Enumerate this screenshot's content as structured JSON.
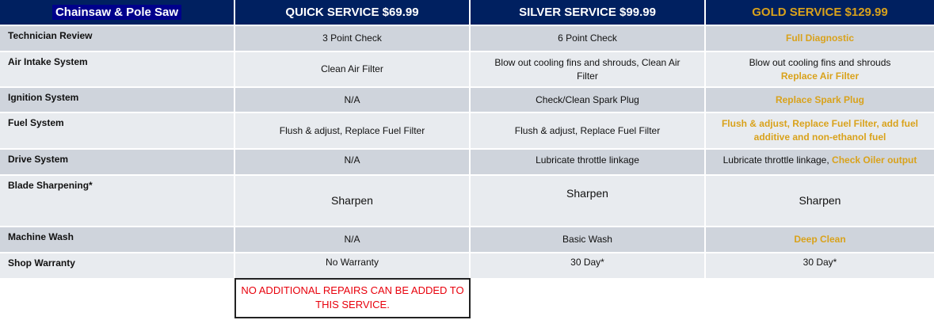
{
  "header": {
    "title": "Chainsaw & Pole Saw",
    "quick": "QUICK SERVICE $69.99",
    "silver": "SILVER SERVICE $99.99",
    "gold": "GOLD SERVICE $129.99"
  },
  "rows": [
    {
      "label": "Technician Review",
      "quick": "3 Point Check",
      "silver": "6 Point Check",
      "gold": "Full Diagnostic"
    },
    {
      "label": "Air Intake System",
      "quick": "Clean Air Filter",
      "silver": "Blow out cooling fins and shrouds, Clean  Air Filter",
      "gold_plain": "Blow out cooling fins and shrouds",
      "gold": "Replace Air Filter"
    },
    {
      "label": "Ignition System",
      "quick": "N/A",
      "silver": "Check/Clean Spark Plug",
      "gold": "Replace Spark Plug"
    },
    {
      "label": "Fuel System",
      "quick": "Flush & adjust, Replace Fuel Filter",
      "silver": "Flush & adjust, Replace Fuel Filter",
      "gold": "Flush & adjust, Replace Fuel Filter, add fuel additive and non-ethanol fuel"
    },
    {
      "label": "Drive System",
      "quick": "N/A",
      "silver": "Lubricate throttle linkage",
      "gold_plain": "Lubricate throttle linkage, ",
      "gold": "Check Oiler output"
    },
    {
      "label": "Blade Sharpening*",
      "quick": "Sharpen",
      "silver": "Sharpen",
      "gold": "Sharpen"
    },
    {
      "label": "Machine Wash",
      "quick": "N/A",
      "silver": "Basic Wash",
      "gold": "Deep Clean"
    },
    {
      "label": "Shop Warranty",
      "quick": "No Warranty",
      "silver": "30 Day*",
      "gold": "30 Day*"
    }
  ],
  "note": "NO ADDITIONAL REPAIRS CAN BE ADDED TO THIS SERVICE.",
  "colors": {
    "header_bg": "#002060",
    "gold": "#d9a21b",
    "note_text": "#e8000b"
  }
}
